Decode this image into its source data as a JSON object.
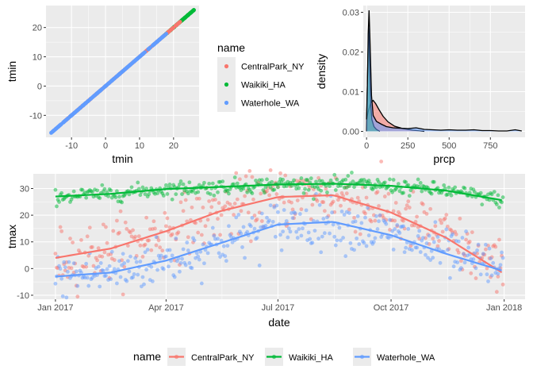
{
  "colors": {
    "CentralPark_NY": "#F8766D",
    "Waikiki_HA": "#00BA38",
    "Waterhole_WA": "#619CFF",
    "panel": "#EBEBEB",
    "grid": "#FFFFFF"
  },
  "chart_data": [
    {
      "id": "scatter-tmin",
      "type": "scatter",
      "xlabel": "tmin",
      "ylabel": "tmin",
      "xlim": [
        -17.5,
        27.5
      ],
      "ylim": [
        -17.5,
        27.5
      ],
      "xticks": [
        -10,
        0,
        10,
        20
      ],
      "yticks": [
        -10,
        0,
        10,
        20
      ],
      "grid": true,
      "series": [
        {
          "name": "Waterhole_WA",
          "range": [
            -16,
            18
          ]
        },
        {
          "name": "CentralPark_NY",
          "range": [
            -12,
            22
          ]
        },
        {
          "name": "Waikiki_HA",
          "range": [
            17,
            26
          ]
        }
      ]
    },
    {
      "id": "density-prcp",
      "type": "area",
      "xlabel": "prcp",
      "ylabel": "density",
      "xlim": [
        -20,
        960
      ],
      "ylim": [
        -0.0015,
        0.0317
      ],
      "xticks": [
        0,
        250,
        500,
        750
      ],
      "yticks": [
        0.0,
        0.01,
        0.02,
        0.03
      ],
      "yticklabels": [
        "0.00",
        "0.01",
        "0.02",
        "0.03"
      ],
      "grid": true,
      "series": [
        {
          "name": "Waikiki_HA",
          "x": [
            0,
            3,
            8,
            12,
            16,
            20,
            25,
            32,
            45,
            60,
            80
          ],
          "y": [
            0.0,
            0.008,
            0.018,
            0.026,
            0.0225,
            0.014,
            0.007,
            0.003,
            0.0012,
            0.0005,
            0.0
          ]
        },
        {
          "name": "CentralPark_NY",
          "x": [
            0,
            10,
            25,
            40,
            55,
            75,
            100,
            130,
            170,
            220,
            280,
            350
          ],
          "y": [
            0.003,
            0.005,
            0.0072,
            0.0078,
            0.007,
            0.0055,
            0.0038,
            0.0024,
            0.0013,
            0.0007,
            0.0003,
            0.0
          ]
        },
        {
          "name": "Waterhole_WA",
          "x": [
            0,
            5,
            10,
            15,
            20,
            30,
            40,
            60,
            90,
            120,
            160,
            200,
            250,
            300,
            350,
            400,
            450,
            500,
            550,
            600,
            650,
            700,
            750,
            800,
            850,
            900,
            940
          ],
          "y": [
            0.003,
            0.012,
            0.0245,
            0.0305,
            0.024,
            0.009,
            0.004,
            0.0025,
            0.0018,
            0.0012,
            0.0009,
            0.0008,
            0.0007,
            0.0009,
            0.0005,
            0.0004,
            0.0003,
            0.0004,
            0.0003,
            0.0003,
            0.0004,
            0.0002,
            0.0002,
            0.0001,
            0.0001,
            0.0004,
            0.0001
          ]
        }
      ]
    },
    {
      "id": "scatter-tmax",
      "type": "scatter",
      "xlabel": "date",
      "ylabel": "tmax",
      "xlim": [
        "2016-12-14",
        "2018-01-18"
      ],
      "ylim": [
        -11.5,
        35.5
      ],
      "xticks": [
        "2017-01-01",
        "2017-04-01",
        "2017-07-01",
        "2017-10-01",
        "2018-01-01"
      ],
      "xticklabels": [
        "Jan 2017",
        "Apr 2017",
        "Jul 2017",
        "Oct 2017",
        "Jan 2018"
      ],
      "yticks": [
        -10,
        0,
        10,
        20,
        30
      ],
      "grid": true,
      "smooth": true,
      "series": [
        {
          "name": "CentralPark_NY",
          "smooth_x": [
            "2017-01-01",
            "2017-02-15",
            "2017-04-01",
            "2017-05-15",
            "2017-07-01",
            "2017-08-15",
            "2017-10-01",
            "2017-11-15",
            "2018-01-01"
          ],
          "smooth_y": [
            4,
            7.5,
            14,
            21.5,
            26.8,
            27.5,
            21,
            11.5,
            -2
          ]
        },
        {
          "name": "Waikiki_HA",
          "smooth_x": [
            "2017-01-01",
            "2017-02-15",
            "2017-04-01",
            "2017-05-15",
            "2017-07-01",
            "2017-08-15",
            "2017-10-01",
            "2017-11-15",
            "2018-01-01"
          ],
          "smooth_y": [
            27,
            28,
            29.8,
            30.6,
            31.5,
            31.8,
            31,
            29.2,
            25.5
          ]
        },
        {
          "name": "Waterhole_WA",
          "smooth_x": [
            "2017-01-01",
            "2017-02-15",
            "2017-04-01",
            "2017-05-15",
            "2017-07-01",
            "2017-08-15",
            "2017-10-01",
            "2017-11-15",
            "2018-01-01"
          ],
          "smooth_y": [
            -3,
            -1.5,
            3,
            9.5,
            16.5,
            17.5,
            12.5,
            5.5,
            -1
          ]
        }
      ]
    }
  ],
  "legend_right": {
    "title": "name",
    "items": [
      "CentralPark_NY",
      "Waikiki_HA",
      "Waterhole_WA"
    ]
  },
  "legend_bottom": {
    "title": "name",
    "items": [
      "CentralPark_NY",
      "Waikiki_HA",
      "Waterhole_WA"
    ]
  }
}
